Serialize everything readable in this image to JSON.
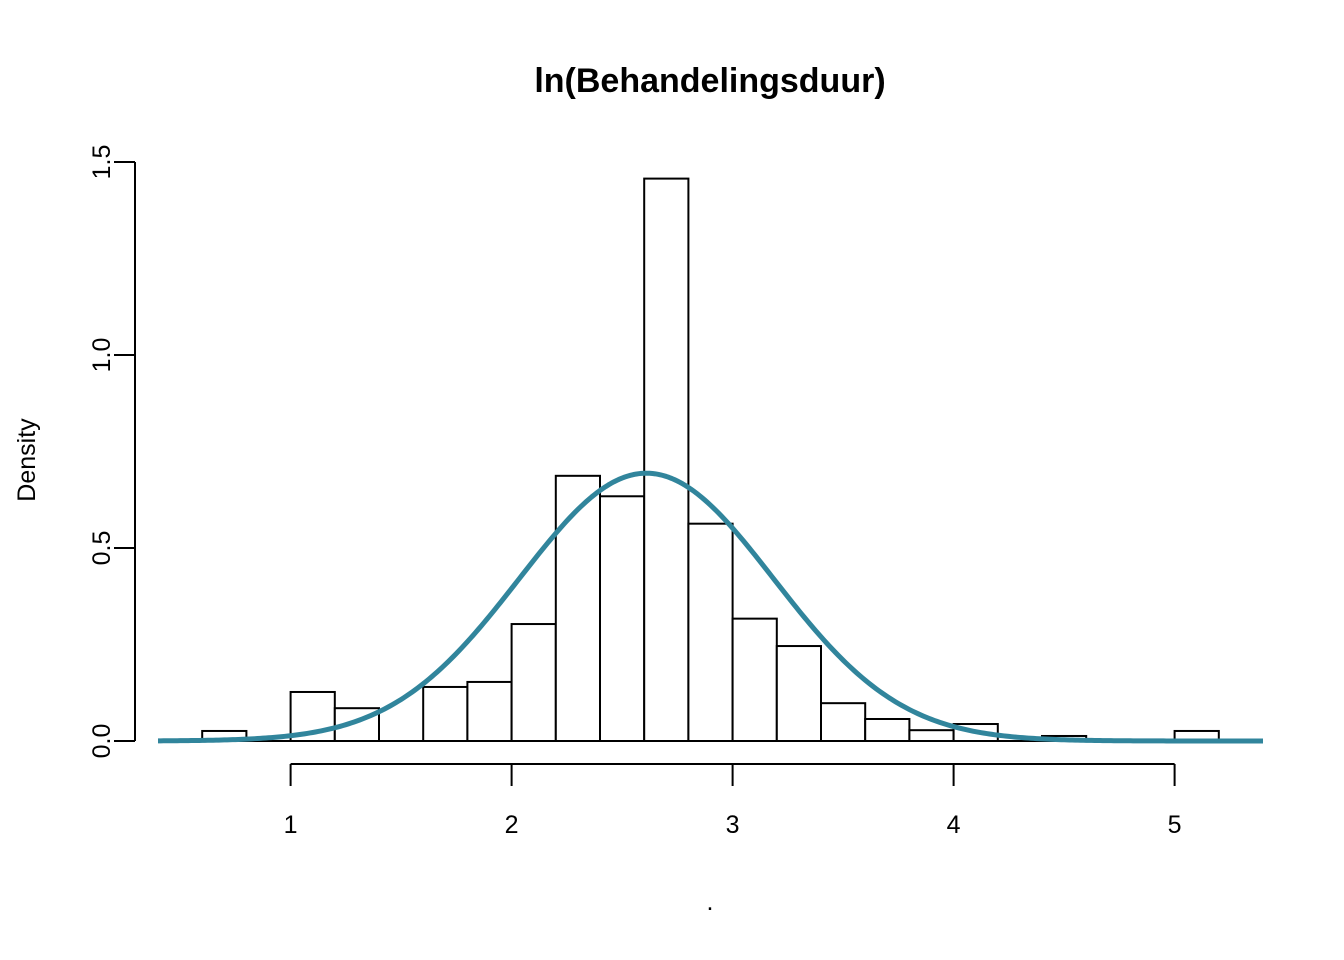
{
  "chart_data": {
    "type": "bar",
    "subtype": "histogram",
    "title": "ln(Behandelingsduur)",
    "xlabel": ".",
    "ylabel": "Density",
    "xlim": [
      0.4,
      5.4
    ],
    "ylim": [
      0,
      1.5
    ],
    "x_ticks": [
      1,
      2,
      3,
      4,
      5
    ],
    "y_ticks": [
      0.0,
      0.5,
      1.0,
      1.5
    ],
    "x_tick_labels": [
      "1",
      "2",
      "3",
      "4",
      "5"
    ],
    "y_tick_labels": [
      "0.0",
      "0.5",
      "1.0",
      "1.5"
    ],
    "bins": [
      {
        "x0": 0.6,
        "x1": 0.8,
        "density": 0.026
      },
      {
        "x0": 0.8,
        "x1": 1.0,
        "density": 0.0
      },
      {
        "x0": 1.0,
        "x1": 1.2,
        "density": 0.127
      },
      {
        "x0": 1.2,
        "x1": 1.4,
        "density": 0.085
      },
      {
        "x0": 1.4,
        "x1": 1.6,
        "density": 0.0
      },
      {
        "x0": 1.6,
        "x1": 1.8,
        "density": 0.14
      },
      {
        "x0": 1.8,
        "x1": 2.0,
        "density": 0.153
      },
      {
        "x0": 2.0,
        "x1": 2.2,
        "density": 0.303
      },
      {
        "x0": 2.2,
        "x1": 2.4,
        "density": 0.687
      },
      {
        "x0": 2.4,
        "x1": 2.6,
        "density": 0.634
      },
      {
        "x0": 2.6,
        "x1": 2.8,
        "density": 1.457
      },
      {
        "x0": 2.8,
        "x1": 3.0,
        "density": 0.563
      },
      {
        "x0": 3.0,
        "x1": 3.2,
        "density": 0.317
      },
      {
        "x0": 3.2,
        "x1": 3.4,
        "density": 0.246
      },
      {
        "x0": 3.4,
        "x1": 3.6,
        "density": 0.098
      },
      {
        "x0": 3.6,
        "x1": 3.8,
        "density": 0.057
      },
      {
        "x0": 3.8,
        "x1": 4.0,
        "density": 0.028
      },
      {
        "x0": 4.0,
        "x1": 4.2,
        "density": 0.044
      },
      {
        "x0": 4.2,
        "x1": 4.4,
        "density": 0.0
      },
      {
        "x0": 4.4,
        "x1": 4.6,
        "density": 0.013
      },
      {
        "x0": 4.6,
        "x1": 4.8,
        "density": 0.0
      },
      {
        "x0": 4.8,
        "x1": 5.0,
        "density": 0.0
      },
      {
        "x0": 5.0,
        "x1": 5.2,
        "density": 0.026
      }
    ],
    "overlay_curve": {
      "type": "line",
      "distribution": "normal",
      "mean": 2.61,
      "sd": 0.575,
      "color": "#31859c"
    },
    "grid": false,
    "legend": "none"
  }
}
